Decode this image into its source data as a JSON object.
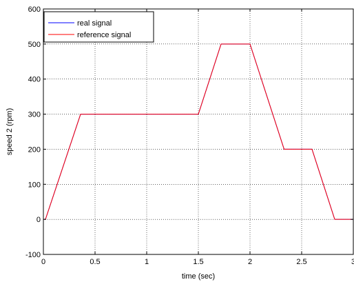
{
  "chart_data": {
    "type": "line",
    "xlabel": "time (sec)",
    "ylabel": "speed 2 (rpm)",
    "xlim": [
      0,
      3
    ],
    "ylim": [
      -100,
      600
    ],
    "grid": true,
    "legend_position": "top-left",
    "x_ticks": [
      "0",
      "0.5",
      "1",
      "1.5",
      "2",
      "2.5",
      "3"
    ],
    "x_tick_values": [
      0,
      0.5,
      1,
      1.5,
      2,
      2.5,
      3
    ],
    "y_ticks": [
      "-100",
      "0",
      "100",
      "200",
      "300",
      "400",
      "500",
      "600"
    ],
    "y_tick_values": [
      -100,
      0,
      100,
      200,
      300,
      400,
      500,
      600
    ],
    "series": [
      {
        "name": "real signal",
        "color": "#0000ff",
        "x": [
          0,
          0.02,
          0.36,
          1.5,
          1.72,
          2.0,
          2.33,
          2.6,
          2.82,
          3.0
        ],
        "y": [
          0,
          0,
          300,
          300,
          500,
          500,
          200,
          200,
          0,
          0
        ]
      },
      {
        "name": "reference signal",
        "color": "#ff0000",
        "x": [
          0,
          0.02,
          0.36,
          1.5,
          1.72,
          2.0,
          2.33,
          2.6,
          2.82,
          3.0
        ],
        "y": [
          0,
          0,
          300,
          300,
          500,
          500,
          200,
          200,
          0,
          0
        ]
      }
    ]
  }
}
